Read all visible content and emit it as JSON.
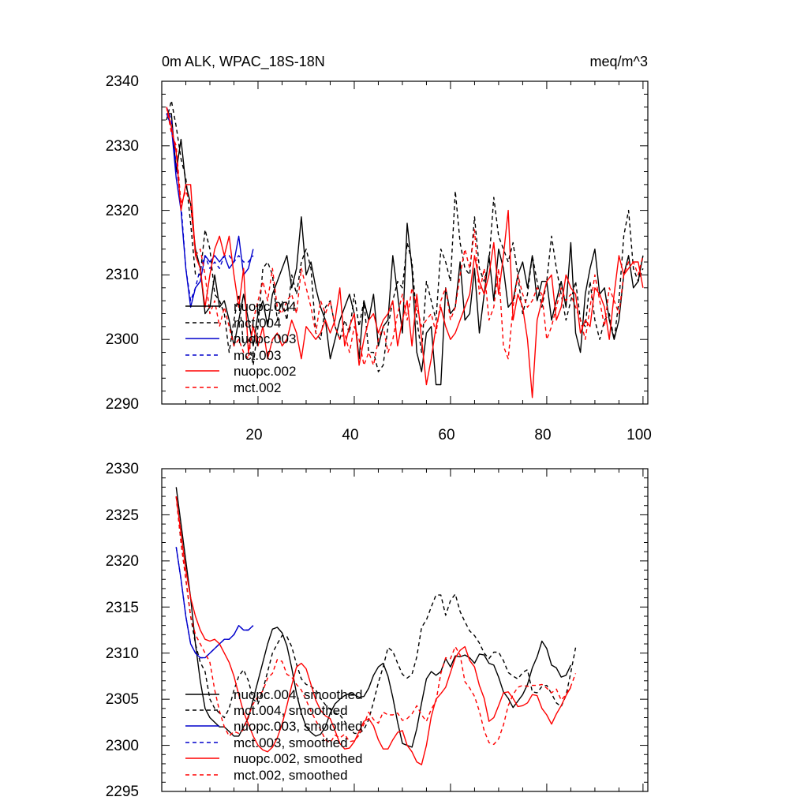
{
  "chart_data": [
    {
      "type": "line",
      "title": "0m ALK, WPAC_18S-18N",
      "units_label": "meq/m^3",
      "xlim": [
        0,
        101
      ],
      "ylim": [
        2290,
        2340
      ],
      "x_ticks": [
        20,
        40,
        60,
        80,
        100
      ],
      "y_ticks": [
        2290,
        2300,
        2310,
        2320,
        2330,
        2340
      ],
      "x_start": 1,
      "series": [
        {
          "name": "nuopc.004",
          "color": "#000000",
          "dash": "solid",
          "values": [
            2335,
            2335,
            2326,
            2331,
            2324,
            2321,
            2314,
            2311,
            2304,
            2305,
            2310,
            2305,
            2306,
            2303,
            2299,
            2303,
            2307,
            2303,
            2299,
            2304,
            2306,
            2302,
            2307,
            2309,
            2311,
            2313,
            2308,
            2311,
            2319,
            2310,
            2312,
            2308,
            2305,
            2303,
            2297,
            2300,
            2303,
            2305,
            2307,
            2304,
            2297,
            2306,
            2303,
            2307,
            2299,
            2302,
            2303,
            2313,
            2307,
            2301,
            2318,
            2311,
            2298,
            2295,
            2301,
            2302,
            2293,
            2293,
            2308,
            2304,
            2305,
            2312,
            2303,
            2304,
            2311,
            2301,
            2307,
            2313,
            2306,
            2314,
            2311,
            2305,
            2306,
            2310,
            2312,
            2308,
            2313,
            2306,
            2309,
            2309,
            2303,
            2306,
            2309,
            2305,
            2315,
            2301,
            2298,
            2307,
            2311,
            2314,
            2307,
            2308,
            2303,
            2300,
            2303,
            2310,
            2313,
            2308,
            2309,
            2313
          ]
        },
        {
          "name": "mct.004",
          "color": "#000000",
          "dash": "dashed",
          "values": [
            2334,
            2337,
            2333,
            2328,
            2325,
            2318,
            2310,
            2310,
            2317,
            2314,
            2307,
            2306,
            2304,
            2298,
            2303,
            2307,
            2299,
            2300,
            2296,
            2302,
            2311,
            2312,
            2310,
            2303,
            2306,
            2303,
            2310,
            2307,
            2312,
            2314,
            2311,
            2301,
            2300,
            2305,
            2306,
            2302,
            2300,
            2303,
            2301,
            2307,
            2302,
            2306,
            2298,
            2298,
            2295,
            2296,
            2302,
            2306,
            2309,
            2308,
            2315,
            2312,
            2303,
            2298,
            2309,
            2306,
            2303,
            2314,
            2312,
            2309,
            2323,
            2315,
            2311,
            2310,
            2319,
            2311,
            2309,
            2312,
            2322,
            2316,
            2314,
            2312,
            2315,
            2310,
            2304,
            2307,
            2313,
            2309,
            2305,
            2309,
            2316,
            2311,
            2307,
            2303,
            2306,
            2309,
            2303,
            2302,
            2309,
            2303,
            2300,
            2303,
            2304,
            2300,
            2306,
            2316,
            2320,
            2311,
            2309,
            2311
          ]
        },
        {
          "name": "nuopc.003",
          "color": "#0000cc",
          "dash": "solid",
          "values": [
            2335,
            2333,
            2325,
            2320,
            2311,
            2305,
            2308,
            2309,
            2313,
            2312,
            2313,
            2312,
            2313,
            2311,
            2312,
            2316,
            2310,
            2311,
            2314
          ]
        },
        {
          "name": "mct.003",
          "color": "#0000cc",
          "dash": "dashed",
          "values": [
            2336,
            2334,
            2327,
            2321,
            2311,
            2306,
            2308,
            2311,
            2313,
            2311,
            2312,
            2311,
            2313,
            2313,
            2312,
            2313,
            2312,
            2312,
            2313
          ]
        },
        {
          "name": "nuopc.002",
          "color": "#ff0000",
          "dash": "solid",
          "values": [
            2336,
            2333,
            2329,
            2320,
            2324,
            2324,
            2313,
            2311,
            2305,
            2310,
            2314,
            2316,
            2313,
            2316,
            2310,
            2305,
            2311,
            2298,
            2302,
            2299,
            2302,
            2297,
            2300,
            2301,
            2299,
            2300,
            2303,
            2301,
            2297,
            2302,
            2301,
            2300,
            2301,
            2303,
            2301,
            2303,
            2308,
            2299,
            2302,
            2304,
            2296,
            2300,
            2303,
            2304,
            2301,
            2303,
            2304,
            2306,
            2299,
            2303,
            2306,
            2299,
            2307,
            2300,
            2293,
            2297,
            2302,
            2305,
            2302,
            2300,
            2301,
            2303,
            2305,
            2307,
            2313,
            2309,
            2307,
            2310,
            2315,
            2307,
            2313,
            2320,
            2303,
            2307,
            2305,
            2300,
            2291,
            2303,
            2306,
            2309,
            2310,
            2303,
            2305,
            2310,
            2308,
            2307,
            2301,
            2303,
            2302,
            2308,
            2307,
            2305,
            2300,
            2307,
            2313,
            2310,
            2311,
            2312,
            2312,
            2308
          ]
        },
        {
          "name": "mct.002",
          "color": "#ff0000",
          "dash": "dashed",
          "values": [
            2336,
            2332,
            2330,
            2321,
            2323,
            2321,
            2313,
            2314,
            2310,
            2304,
            2306,
            2302,
            2305,
            2302,
            2299,
            2300,
            2298,
            2297,
            2303,
            2306,
            2309,
            2306,
            2311,
            2305,
            2304,
            2306,
            2307,
            2304,
            2311,
            2308,
            2305,
            2301,
            2306,
            2304,
            2306,
            2302,
            2300,
            2301,
            2298,
            2302,
            2300,
            2296,
            2298,
            2296,
            2300,
            2302,
            2298,
            2300,
            2304,
            2307,
            2303,
            2308,
            2305,
            2302,
            2303,
            2304,
            2301,
            2306,
            2308,
            2303,
            2305,
            2310,
            2314,
            2311,
            2317,
            2307,
            2311,
            2303,
            2305,
            2311,
            2299,
            2297,
            2305,
            2310,
            2307,
            2305,
            2306,
            2308,
            2307,
            2300,
            2302,
            2305,
            2308,
            2306,
            2307,
            2305,
            2303,
            2300,
            2305,
            2310,
            2306,
            2302,
            2308,
            2306,
            2304,
            2310,
            2312,
            2312,
            2310,
            2313
          ]
        }
      ],
      "legend": [
        "nuopc.004",
        "mct.004",
        "nuopc.003",
        "mct.003",
        "nuopc.002",
        "mct.002"
      ],
      "legend_position": "bottom-left"
    },
    {
      "type": "line",
      "xlim": [
        0,
        101
      ],
      "ylim": [
        2295,
        2330
      ],
      "y_ticks": [
        2295,
        2300,
        2305,
        2310,
        2315,
        2320,
        2325,
        2330
      ],
      "x_start": 3,
      "series": [
        {
          "name": "nuopc.004, smoothed",
          "color": "#000000",
          "dash": "solid",
          "values": [
            2328,
            2324,
            2320,
            2316,
            2311,
            2307,
            2304,
            2303,
            2302.5,
            2302,
            2302,
            2301.5,
            2301,
            2301,
            2302,
            2303,
            2305,
            2307,
            2309,
            2311,
            2312.6,
            2312.8,
            2312.2,
            2310.8,
            2308.4,
            2305.6,
            2303.5,
            2302,
            2301.4,
            2301,
            2301.2,
            2302,
            2303.5,
            2304.5,
            2305,
            2305.4,
            2305.6,
            2305.5,
            2305.2,
            2305.3,
            2306.2,
            2307.6,
            2308.5,
            2308.9,
            2307.5,
            2305.2,
            2302.5,
            2300.2,
            2300,
            2299.8,
            2301.8,
            2304.6,
            2307.2,
            2308,
            2307.6,
            2308,
            2309.4,
            2308.5,
            2309.7,
            2309.6,
            2309.8,
            2309.5,
            2308.9,
            2309.9,
            2309.8,
            2308.9,
            2308.7,
            2307.4,
            2305.8,
            2305.1,
            2304.1,
            2304.8,
            2305.5,
            2306.6,
            2308.4,
            2309.6,
            2311.3,
            2310.5,
            2308.7,
            2308.4,
            2307.4,
            2307.6,
            2308.7
          ]
        },
        {
          "name": "mct.004, smoothed",
          "color": "#000000",
          "dash": "dashed",
          "values": [
            2327,
            2322,
            2318,
            2314,
            2311,
            2309,
            2308,
            2305,
            2304,
            2303.5,
            2303,
            2304,
            2306,
            2307.5,
            2308.2,
            2307,
            2305,
            2304.5,
            2306,
            2308,
            2310,
            2311,
            2311.9,
            2311.8,
            2310.7,
            2308.8,
            2307.2,
            2306.6,
            2306.4,
            2306,
            2305.1,
            2304.4,
            2303.9,
            2303.5,
            2303.3,
            2302.6,
            2301.8,
            2301.3,
            2301.3,
            2301.7,
            2302.8,
            2304.7,
            2306.8,
            2308.5,
            2310.6,
            2310.2,
            2308.9,
            2307.7,
            2307.3,
            2307.7,
            2309.6,
            2312.8,
            2313.6,
            2315,
            2316.3,
            2316.3,
            2314.1,
            2315.7,
            2316.4,
            2314.5,
            2313.4,
            2312.4,
            2311.9,
            2311.1,
            2310,
            2309.4,
            2310.1,
            2310.1,
            2309.2,
            2307.9,
            2307.5,
            2307.2,
            2307.9,
            2308.2,
            2305.8,
            2305.7,
            2306.4,
            2306.5,
            2305.6,
            2304.6,
            2304.2,
            2305.4,
            2307.9,
            2310.6
          ]
        },
        {
          "name": "nuopc.003, smoothed",
          "color": "#0000cc",
          "dash": "solid",
          "values": [
            2321.5,
            2318,
            2314,
            2311,
            2310,
            2309.5,
            2309.5,
            2310,
            2310.5,
            2311,
            2311.5,
            2311.5,
            2312,
            2313,
            2312.5,
            2312.5,
            2313
          ]
        },
        {
          "name": "mct.003, smoothed",
          "color": "#0000cc",
          "dash": "dashed",
          "values": [
            2321.5,
            2318,
            2314,
            2311,
            2310,
            2309.5,
            2309.5,
            2310,
            2310.5,
            2311,
            2311.5,
            2311.5,
            2312,
            2313,
            2312.5,
            2312.5,
            2313
          ]
        },
        {
          "name": "nuopc.002, smoothed",
          "color": "#ff0000",
          "dash": "solid",
          "values": [
            2327,
            2323,
            2319,
            2316,
            2314,
            2312.5,
            2311.5,
            2311.3,
            2311.5,
            2311,
            2310,
            2309,
            2307.5,
            2305.5,
            2303.6,
            2302.3,
            2301,
            2300,
            2299.5,
            2299.3,
            2299.8,
            2300.8,
            2302.3,
            2304.3,
            2306.5,
            2308.5,
            2308.9,
            2308.3,
            2306.6,
            2304.9,
            2303.8,
            2303.2,
            2302.9,
            2301.6,
            2300.2,
            2299.6,
            2299.7,
            2300.4,
            2301.5,
            2302.6,
            2302.9,
            2302.1,
            2300.6,
            2299.6,
            2299.6,
            2300.6,
            2301.4,
            2301.6,
            2300,
            2299.3,
            2298.2,
            2297.9,
            2300,
            2303.1,
            2305,
            2305.6,
            2306.3,
            2307.9,
            2309.5,
            2310.3,
            2310.7,
            2309.2,
            2308.5,
            2306.5,
            2305.1,
            2302.6,
            2303,
            2304.3,
            2305.7,
            2305.8,
            2305.1,
            2304.2,
            2304.3,
            2304.6,
            2305.5,
            2305.4,
            2304,
            2303.3,
            2302.3,
            2303.4,
            2304.3,
            2305.4,
            2306.3
          ]
        },
        {
          "name": "mct.002, smoothed",
          "color": "#ff0000",
          "dash": "dashed",
          "values": [
            2327,
            2322,
            2318,
            2314,
            2312,
            2311,
            2310,
            2309,
            2306,
            2303.7,
            2302,
            2301,
            2301.5,
            2301.3,
            2301.7,
            2303.2,
            2304.5,
            2305.3,
            2305.9,
            2307.3,
            2307.8,
            2309.3,
            2309.1,
            2307.7,
            2307.4,
            2306.6,
            2306,
            2304.9,
            2303.7,
            2302.7,
            2301.7,
            2300.6,
            2300.3,
            2301.1,
            2300.8,
            2301.2,
            2300.4,
            2300.5,
            2301.1,
            2302.3,
            2303.6,
            2302.8,
            2302.4,
            2303.6,
            2303.3,
            2303.3,
            2303.5,
            2302.7,
            2302.9,
            2303.4,
            2304.3,
            2303.3,
            2302.6,
            2303.9,
            2304.8,
            2307.8,
            2309.5,
            2309.4,
            2310.7,
            2309.8,
            2306.9,
            2306.2,
            2305.3,
            2303.7,
            2301.6,
            2300.3,
            2300.1,
            2300.7,
            2302.2,
            2304.3,
            2305.5,
            2306.3,
            2306.5,
            2306.4,
            2306.5,
            2306.5,
            2306.6,
            2306.2,
            2305.7,
            2306.1,
            2304.9,
            2305.5,
            2306.4,
            2307.8
          ]
        }
      ],
      "legend": [
        "nuopc.004, smoothed",
        "mct.004, smoothed",
        "nuopc.003, smoothed",
        "mct.003, smoothed",
        "nuopc.002, smoothed",
        "mct.002, smoothed"
      ],
      "legend_position": "bottom-left"
    }
  ]
}
